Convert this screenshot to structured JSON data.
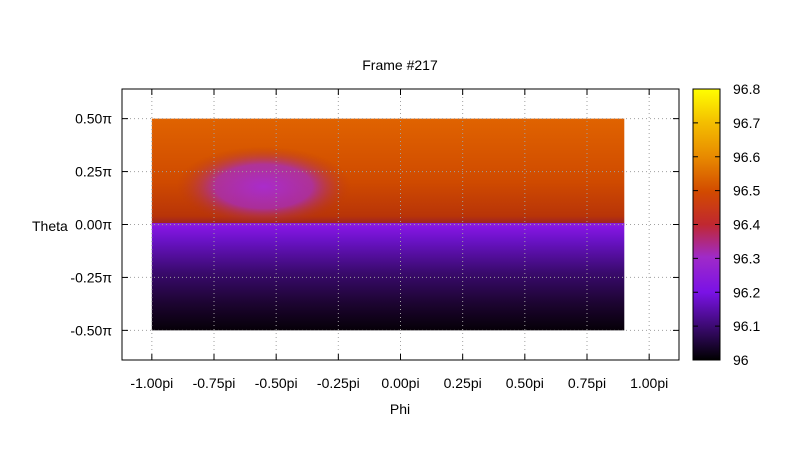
{
  "chart_data": {
    "type": "heatmap",
    "title": "Frame #217",
    "xlabel": "Phi",
    "ylabel": "Theta",
    "xlim": [
      -1.12,
      1.12
    ],
    "ylim": [
      -0.64,
      0.64
    ],
    "x_ticks": [
      {
        "value": -1.0,
        "label": "-1.00pi"
      },
      {
        "value": -0.75,
        "label": "-0.75pi"
      },
      {
        "value": -0.5,
        "label": "-0.50pi"
      },
      {
        "value": -0.25,
        "label": "-0.25pi"
      },
      {
        "value": 0.0,
        "label": "0.00pi"
      },
      {
        "value": 0.25,
        "label": "0.25pi"
      },
      {
        "value": 0.5,
        "label": "0.50pi"
      },
      {
        "value": 0.75,
        "label": "0.75pi"
      },
      {
        "value": 1.0,
        "label": "1.00pi"
      }
    ],
    "y_ticks": [
      {
        "value": 0.5,
        "label": "0.50π"
      },
      {
        "value": 0.25,
        "label": "0.25π"
      },
      {
        "value": 0.0,
        "label": "0.00π"
      },
      {
        "value": -0.25,
        "label": "-0.25π"
      },
      {
        "value": -0.5,
        "label": "-0.50π"
      }
    ],
    "data_extent": {
      "x": [
        -1.0,
        0.9
      ],
      "y": [
        -0.5,
        0.5
      ]
    },
    "colorbar": {
      "range": [
        96.0,
        96.8
      ],
      "ticks": [
        "96",
        "96.1",
        "96.2",
        "96.3",
        "96.4",
        "96.5",
        "96.6",
        "96.7",
        "96.8"
      ]
    },
    "grid": true,
    "regions": [
      {
        "y_range": [
          0.0,
          0.5
        ],
        "value_approx": 96.55
      },
      {
        "y_range": [
          -0.5,
          0.0
        ],
        "value_approx_top": 96.2,
        "value_approx_bottom": 96.0
      },
      {
        "center": [
          -0.55,
          0.18
        ],
        "value_approx": 96.32
      }
    ]
  }
}
